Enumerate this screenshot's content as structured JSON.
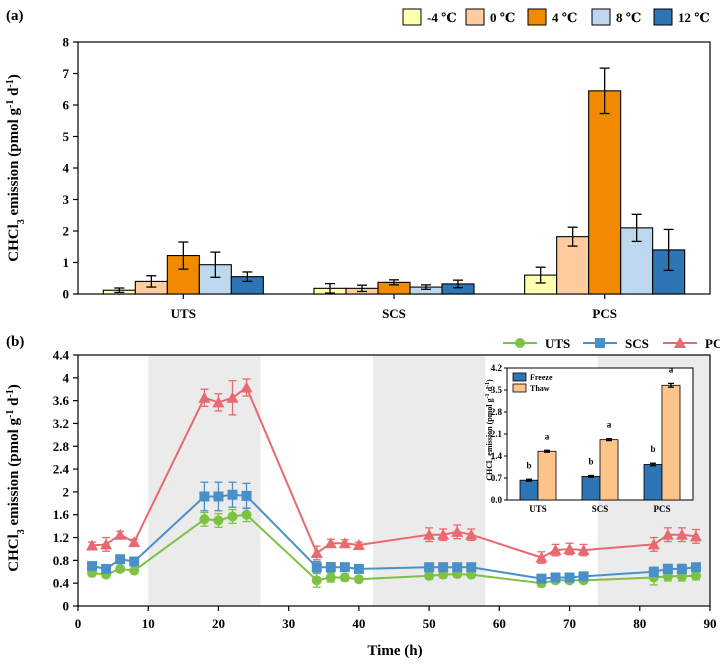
{
  "chart_data": [
    {
      "panel_label": "(a)",
      "type": "bar",
      "categories": [
        "UTS",
        "SCS",
        "PCS"
      ],
      "ylabel_main": "CHCl",
      "ylabel_sub": "3",
      "ylabel_rest": " emission (pmol g",
      "ylabel_sup1": "-1",
      "ylabel_mid": " d",
      "ylabel_sup2": "-1",
      "ylabel_end": ")",
      "ylim": [
        0,
        8
      ],
      "yticks": [
        "0",
        "1",
        "2",
        "3",
        "4",
        "5",
        "6",
        "7",
        "8"
      ],
      "legend_position": "top-right",
      "series": [
        {
          "name": "-4 ℃",
          "color": "#FFFFB0",
          "values": [
            0.12,
            0.18,
            0.6
          ],
          "errors": [
            0.07,
            0.15,
            0.25
          ]
        },
        {
          "name": "0 ℃",
          "color": "#FFCCA0",
          "values": [
            0.4,
            0.18,
            1.82
          ],
          "errors": [
            0.18,
            0.1,
            0.3
          ]
        },
        {
          "name": "4 ℃",
          "color": "#F28A00",
          "values": [
            1.22,
            0.37,
            6.45
          ],
          "errors": [
            0.43,
            0.08,
            0.72
          ]
        },
        {
          "name": "8 ℃",
          "color": "#BDD7EE",
          "values": [
            0.93,
            0.22,
            2.1
          ],
          "errors": [
            0.4,
            0.07,
            0.43
          ]
        },
        {
          "name": "12 ℃",
          "color": "#2E75B6",
          "values": [
            0.55,
            0.32,
            1.4
          ],
          "errors": [
            0.15,
            0.12,
            0.65
          ]
        }
      ]
    },
    {
      "panel_label": "(b)",
      "type": "line",
      "xlabel": "Time (h)",
      "ylabel_main": "CHCl",
      "ylabel_sub": "3",
      "ylabel_rest": " emission (pmol g",
      "ylabel_sup1": "-1",
      "ylabel_mid": " d",
      "ylabel_sup2": "-1",
      "ylabel_end": ")",
      "xlim": [
        0,
        90
      ],
      "ylim": [
        0,
        4.4
      ],
      "xticks": [
        "0",
        "10",
        "20",
        "30",
        "40",
        "50",
        "60",
        "70",
        "80",
        "90"
      ],
      "yticks": [
        "0",
        "0.4",
        "0.8",
        "1.2",
        "1.6",
        "2",
        "2.4",
        "2.8",
        "3.2",
        "3.6",
        "4",
        "4.4"
      ],
      "shaded_x_ranges": [
        [
          10,
          26
        ],
        [
          42,
          58
        ],
        [
          74,
          90
        ]
      ],
      "legend_position": "top-right",
      "series": [
        {
          "name": "UTS",
          "color": "#7DC242",
          "marker": "circle",
          "points": [
            [
              [
                2,
                0.58,
                0.05
              ],
              [
                4,
                0.55,
                0.05
              ],
              [
                6,
                0.65,
                0.05
              ],
              [
                8,
                0.62,
                0.04
              ]
            ],
            [
              [
                18,
                1.52,
                0.12
              ],
              [
                20,
                1.5,
                0.12
              ],
              [
                22,
                1.57,
                0.12
              ],
              [
                24,
                1.6,
                0.12
              ]
            ],
            [
              [
                34,
                0.45,
                0.12
              ],
              [
                36,
                0.5,
                0.08
              ],
              [
                38,
                0.5,
                0.06
              ],
              [
                40,
                0.47,
                0.05
              ]
            ],
            [
              [
                50,
                0.53,
                0.06
              ],
              [
                52,
                0.55,
                0.06
              ],
              [
                54,
                0.56,
                0.05
              ],
              [
                56,
                0.55,
                0.05
              ]
            ],
            [
              [
                66,
                0.4,
                0.06
              ],
              [
                68,
                0.45,
                0.05
              ],
              [
                70,
                0.45,
                0.05
              ],
              [
                72,
                0.45,
                0.04
              ]
            ],
            [
              [
                82,
                0.5,
                0.13
              ],
              [
                84,
                0.52,
                0.08
              ],
              [
                86,
                0.52,
                0.08
              ],
              [
                88,
                0.53,
                0.07
              ]
            ]
          ]
        },
        {
          "name": "SCS",
          "color": "#4A90C8",
          "marker": "square",
          "points": [
            [
              [
                2,
                0.7,
                0.05
              ],
              [
                4,
                0.65,
                0.05
              ],
              [
                6,
                0.82,
                0.05
              ],
              [
                8,
                0.78,
                0.04
              ]
            ],
            [
              [
                18,
                1.92,
                0.25
              ],
              [
                20,
                1.92,
                0.25
              ],
              [
                22,
                1.95,
                0.22
              ],
              [
                24,
                1.93,
                0.22
              ]
            ],
            [
              [
                34,
                0.68,
                0.1
              ],
              [
                36,
                0.68,
                0.08
              ],
              [
                38,
                0.68,
                0.06
              ],
              [
                40,
                0.65,
                0.05
              ]
            ],
            [
              [
                50,
                0.68,
                0.06
              ],
              [
                52,
                0.68,
                0.06
              ],
              [
                54,
                0.68,
                0.05
              ],
              [
                56,
                0.68,
                0.05
              ]
            ],
            [
              [
                66,
                0.48,
                0.06
              ],
              [
                68,
                0.5,
                0.05
              ],
              [
                70,
                0.5,
                0.05
              ],
              [
                72,
                0.52,
                0.04
              ]
            ],
            [
              [
                82,
                0.6,
                0.08
              ],
              [
                84,
                0.65,
                0.08
              ],
              [
                86,
                0.65,
                0.08
              ],
              [
                88,
                0.68,
                0.07
              ]
            ]
          ]
        },
        {
          "name": "PCS",
          "color": "#E8696F",
          "marker": "triangle",
          "points": [
            [
              [
                2,
                1.06,
                0.06
              ],
              [
                4,
                1.08,
                0.12
              ],
              [
                6,
                1.25,
                0.06
              ],
              [
                8,
                1.12,
                0.05
              ]
            ],
            [
              [
                18,
                3.65,
                0.15
              ],
              [
                20,
                3.57,
                0.15
              ],
              [
                22,
                3.65,
                0.3
              ],
              [
                24,
                3.83,
                0.15
              ]
            ],
            [
              [
                34,
                0.93,
                0.12
              ],
              [
                36,
                1.1,
                0.07
              ],
              [
                38,
                1.1,
                0.06
              ],
              [
                40,
                1.07,
                0.05
              ]
            ],
            [
              [
                50,
                1.25,
                0.12
              ],
              [
                52,
                1.25,
                0.1
              ],
              [
                54,
                1.3,
                0.12
              ],
              [
                56,
                1.25,
                0.1
              ]
            ],
            [
              [
                66,
                0.85,
                0.1
              ],
              [
                68,
                0.98,
                0.1
              ],
              [
                70,
                1.0,
                0.1
              ],
              [
                72,
                0.98,
                0.1
              ]
            ],
            [
              [
                82,
                1.08,
                0.12
              ],
              [
                84,
                1.25,
                0.12
              ],
              [
                86,
                1.25,
                0.12
              ],
              [
                88,
                1.22,
                0.12
              ]
            ]
          ]
        }
      ],
      "inset": {
        "type": "bar",
        "categories": [
          "UTS",
          "SCS",
          "PCS"
        ],
        "ylabel_main": "CHCl",
        "ylabel_sub": "3",
        "ylabel_rest": " emission (pmol g",
        "ylabel_sup1": "-1",
        "ylabel_mid": " d",
        "ylabel_sup2": "-1",
        "ylabel_end": ")",
        "ylim": [
          0,
          4.2
        ],
        "yticks": [
          "0.0",
          "0.7",
          "1.4",
          "2.1",
          "2.8",
          "3.5",
          "4.2"
        ],
        "legend_position": "top-left",
        "series": [
          {
            "name": "Freeze",
            "color": "#2E75B6",
            "values": [
              0.63,
              0.75,
              1.13
            ],
            "errors": [
              0.03,
              0.03,
              0.04
            ],
            "letters": [
              "b",
              "b",
              "b"
            ]
          },
          {
            "name": "Thaw",
            "color": "#FFC48A",
            "values": [
              1.55,
              1.92,
              3.65
            ],
            "errors": [
              0.03,
              0.03,
              0.06
            ],
            "letters": [
              "a",
              "a",
              "a"
            ]
          }
        ]
      }
    }
  ]
}
